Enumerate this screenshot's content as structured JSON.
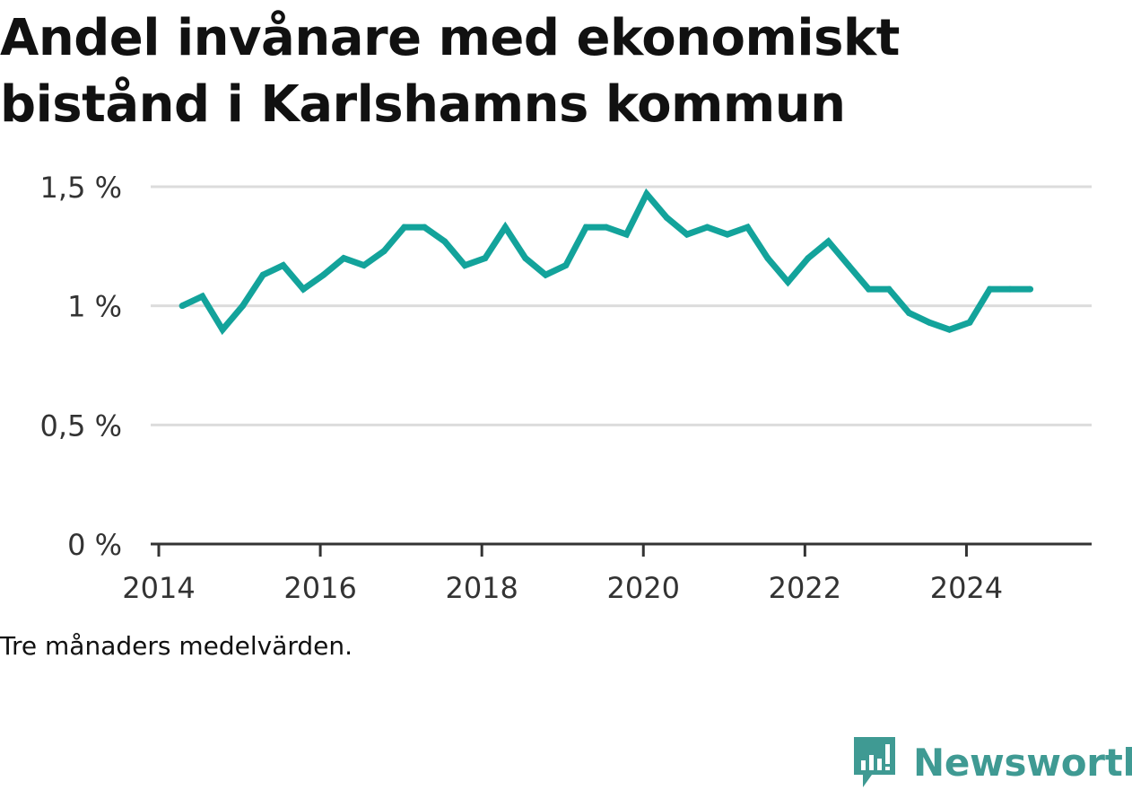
{
  "title": "Andel invånare med ekonomiskt bistånd i Karlshamns kommun",
  "note": "Tre månaders medelvärden.",
  "brand": {
    "name": "Newsworthy",
    "icon": "newsworthy-logo-icon",
    "color": "#3f9a93"
  },
  "colors": {
    "line": "#13a39b",
    "grid": "#dcdcdc",
    "axis": "#333333"
  },
  "chart_data": {
    "type": "line",
    "title": "Andel invånare med ekonomiskt bistånd i Karlshamns kommun",
    "xlabel": "",
    "ylabel": "",
    "x_ticks": [
      "2014",
      "2016",
      "2018",
      "2020",
      "2022",
      "2024"
    ],
    "y_ticks": [
      "0 %",
      "0,5 %",
      "1 %",
      "1,5 %"
    ],
    "xlim": [
      2013.9,
      2025.55
    ],
    "ylim": [
      0,
      1.5
    ],
    "grid": true,
    "x": [
      2014.29,
      2014.54,
      2014.79,
      2015.04,
      2015.29,
      2015.54,
      2015.79,
      2016.04,
      2016.29,
      2016.54,
      2016.79,
      2017.04,
      2017.29,
      2017.54,
      2017.79,
      2018.04,
      2018.29,
      2018.54,
      2018.79,
      2019.04,
      2019.29,
      2019.54,
      2019.79,
      2020.04,
      2020.29,
      2020.54,
      2020.79,
      2021.04,
      2021.29,
      2021.54,
      2021.79,
      2022.04,
      2022.29,
      2022.54,
      2022.79,
      2023.04,
      2023.29,
      2023.54,
      2023.79,
      2024.04,
      2024.29,
      2024.54,
      2024.79
    ],
    "series": [
      {
        "values": [
          1.0,
          1.04,
          0.9,
          1.0,
          1.13,
          1.17,
          1.07,
          1.13,
          1.2,
          1.17,
          1.23,
          1.33,
          1.33,
          1.27,
          1.17,
          1.2,
          1.33,
          1.2,
          1.13,
          1.17,
          1.33,
          1.33,
          1.3,
          1.47,
          1.37,
          1.3,
          1.33,
          1.3,
          1.33,
          1.2,
          1.1,
          1.2,
          1.27,
          1.17,
          1.07,
          1.07,
          0.97,
          0.93,
          0.9,
          0.93,
          1.07,
          1.07,
          1.07
        ],
        "color": "#13a39b"
      }
    ]
  }
}
